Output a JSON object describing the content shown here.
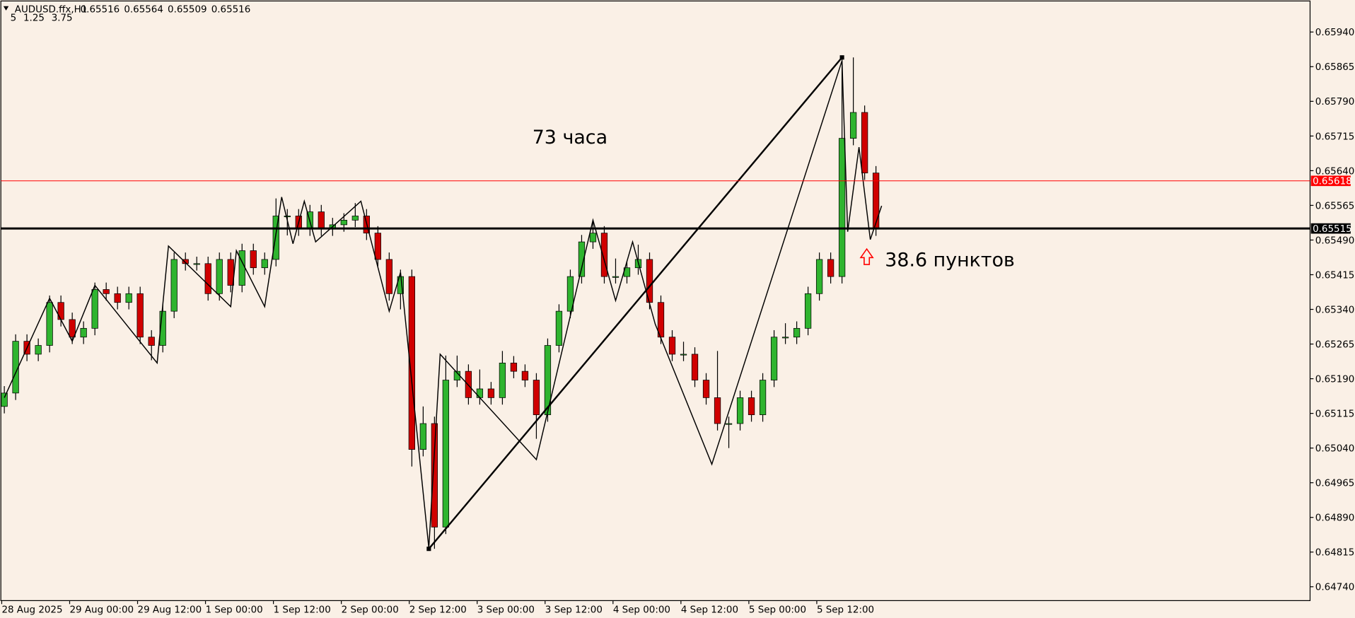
{
  "header": {
    "symbol": "AUDUSD.ffx,H1",
    "last_ohlc": [
      0.65516,
      0.65564,
      0.65509,
      0.65516
    ],
    "indicator_params": [
      5,
      1.25,
      3.75
    ]
  },
  "chart_data": {
    "type": "candlestick",
    "x": [
      0,
      2,
      4,
      6,
      8,
      10,
      12,
      14,
      16,
      18,
      20,
      22,
      24,
      26,
      28,
      30,
      32,
      34,
      36,
      38,
      40,
      42,
      44,
      46,
      48,
      50,
      52,
      54,
      56,
      58,
      60,
      62,
      64,
      66,
      68,
      70,
      72,
      74,
      76,
      78,
      80,
      82,
      84,
      86,
      88,
      90,
      92,
      94,
      96,
      98,
      100,
      102,
      104,
      106,
      108,
      110,
      112,
      114,
      116,
      118,
      120,
      122,
      124,
      126,
      128,
      130,
      132,
      134,
      136,
      138,
      140,
      142,
      144,
      146,
      148,
      150,
      152,
      154
    ],
    "open": [
      0.6513,
      0.65159,
      0.65271,
      0.65243,
      0.65262,
      0.65355,
      0.65318,
      0.6528,
      0.65299,
      0.65383,
      0.65374,
      0.65355,
      0.65374,
      0.6528,
      0.65262,
      0.65336,
      0.65448,
      0.65439,
      0.65439,
      0.65374,
      0.65448,
      0.65392,
      0.65467,
      0.6543,
      0.65448,
      0.65542,
      0.65542,
      0.65514,
      0.65551,
      0.65514,
      0.65523,
      0.65533,
      0.65542,
      0.65505,
      0.65448,
      0.65374,
      0.65411,
      0.65037,
      0.65093,
      0.64869,
      0.65187,
      0.65206,
      0.65149,
      0.65168,
      0.65149,
      0.65224,
      0.65206,
      0.65187,
      0.65112,
      0.65262,
      0.65336,
      0.65411,
      0.65486,
      0.65505,
      0.65411,
      0.65411,
      0.6543,
      0.65448,
      0.65355,
      0.6528,
      0.65243,
      0.65243,
      0.65187,
      0.65149,
      0.65093,
      0.65093,
      0.65149,
      0.65112,
      0.65187,
      0.6528,
      0.6528,
      0.65299,
      0.65374,
      0.65448,
      0.65411,
      0.6571,
      0.65766,
      0.65635
    ],
    "high": [
      0.65174,
      0.65286,
      0.65286,
      0.65277,
      0.6537,
      0.6537,
      0.65333,
      0.65314,
      0.65398,
      0.65398,
      0.65389,
      0.65389,
      0.65389,
      0.65295,
      0.65351,
      0.65463,
      0.65463,
      0.65454,
      0.65454,
      0.65463,
      0.65463,
      0.65482,
      0.65482,
      0.65463,
      0.6558,
      0.65557,
      0.65557,
      0.65566,
      0.65566,
      0.65538,
      0.65548,
      0.6557,
      0.65557,
      0.6552,
      0.65463,
      0.65426,
      0.65426,
      0.6513,
      0.65108,
      0.6524,
      0.6524,
      0.65221,
      0.6521,
      0.65183,
      0.6525,
      0.65239,
      0.65221,
      0.65202,
      0.65277,
      0.65351,
      0.65426,
      0.65501,
      0.6553,
      0.6552,
      0.6545,
      0.65445,
      0.6548,
      0.65463,
      0.6537,
      0.65295,
      0.6527,
      0.65258,
      0.65202,
      0.6525,
      0.65108,
      0.65164,
      0.65164,
      0.65202,
      0.65295,
      0.6531,
      0.65314,
      0.65389,
      0.65463,
      0.65463,
      0.65885,
      0.65885,
      0.65781,
      0.6565
    ],
    "low": [
      0.65115,
      0.65144,
      0.65228,
      0.65228,
      0.65247,
      0.65303,
      0.65265,
      0.65265,
      0.65284,
      0.65359,
      0.6534,
      0.6534,
      0.65265,
      0.6523,
      0.65247,
      0.65321,
      0.65424,
      0.65424,
      0.65359,
      0.65359,
      0.65377,
      0.65377,
      0.65415,
      0.65415,
      0.65433,
      0.655,
      0.65499,
      0.65499,
      0.65499,
      0.65499,
      0.65508,
      0.65518,
      0.6549,
      0.65433,
      0.65359,
      0.6534,
      0.65,
      0.65022,
      0.64822,
      0.64854,
      0.65172,
      0.65134,
      0.65134,
      0.65134,
      0.65134,
      0.65191,
      0.65172,
      0.6506,
      0.65097,
      0.65247,
      0.65321,
      0.65396,
      0.65471,
      0.65396,
      0.65396,
      0.65396,
      0.65415,
      0.6534,
      0.65265,
      0.65228,
      0.65228,
      0.65172,
      0.65134,
      0.65078,
      0.6504,
      0.65078,
      0.65097,
      0.65097,
      0.65172,
      0.65265,
      0.65265,
      0.65284,
      0.65359,
      0.65396,
      0.65396,
      0.65695,
      0.6562,
      0.65499
    ],
    "close": [
      0.65159,
      0.65271,
      0.65243,
      0.65262,
      0.65355,
      0.65318,
      0.6528,
      0.65299,
      0.65383,
      0.65374,
      0.65355,
      0.65374,
      0.6528,
      0.65262,
      0.65336,
      0.65448,
      0.65439,
      0.65439,
      0.65374,
      0.65448,
      0.65392,
      0.65467,
      0.6543,
      0.65448,
      0.65542,
      0.65542,
      0.65514,
      0.65551,
      0.65514,
      0.65523,
      0.65533,
      0.65542,
      0.65505,
      0.65448,
      0.65374,
      0.65411,
      0.65037,
      0.65093,
      0.64869,
      0.65187,
      0.65206,
      0.65149,
      0.65168,
      0.65149,
      0.65224,
      0.65206,
      0.65187,
      0.65112,
      0.65262,
      0.65336,
      0.65411,
      0.65486,
      0.65505,
      0.65411,
      0.65411,
      0.6543,
      0.65448,
      0.65355,
      0.6528,
      0.65243,
      0.65243,
      0.65187,
      0.65149,
      0.65093,
      0.65093,
      0.65149,
      0.65112,
      0.65187,
      0.6528,
      0.6528,
      0.65299,
      0.65374,
      0.65448,
      0.65411,
      0.6571,
      0.65766,
      0.65635,
      0.65514
    ],
    "up_color": "#2fb42f",
    "down_color": "#d00000",
    "wick_color": "#000000",
    "xlim": [
      0,
      231
    ],
    "ylim": [
      0.6471,
      0.66009
    ],
    "xticks": [
      {
        "value": 0,
        "label": "28 Aug 2025"
      },
      {
        "value": 12,
        "label": "29 Aug 00:00"
      },
      {
        "value": 24,
        "label": "29 Aug 12:00"
      },
      {
        "value": 36,
        "label": "1 Sep 00:00"
      },
      {
        "value": 48,
        "label": "1 Sep 12:00"
      },
      {
        "value": 60,
        "label": "2 Sep 00:00"
      },
      {
        "value": 72,
        "label": "2 Sep 12:00"
      },
      {
        "value": 84,
        "label": "3 Sep 00:00"
      },
      {
        "value": 96,
        "label": "3 Sep 12:00"
      },
      {
        "value": 108,
        "label": "4 Sep 00:00"
      },
      {
        "value": 120,
        "label": "4 Sep 12:00"
      },
      {
        "value": 132,
        "label": "5 Sep 00:00"
      },
      {
        "value": 144,
        "label": "5 Sep 12:00"
      }
    ],
    "yticks": [
      {
        "value": 0.6594,
        "label": "0.65940"
      },
      0.65865,
      {
        "value": 0.6579,
        "label": "0.65790"
      },
      0.65715,
      {
        "value": 0.6564,
        "label": "0.65640"
      },
      0.65565,
      {
        "value": 0.6549,
        "label": "0.65490"
      },
      0.65415,
      {
        "value": 0.6534,
        "label": "0.65340"
      },
      0.65265,
      {
        "value": 0.6519,
        "label": "0.65190"
      },
      0.65115,
      {
        "value": 0.6504,
        "label": "0.65040"
      },
      0.64965,
      {
        "value": 0.6489,
        "label": "0.64890"
      },
      0.64815,
      {
        "value": 0.6474,
        "label": "0.64740"
      }
    ],
    "hlines": [
      {
        "value": 0.65618,
        "color": "#ff0000"
      },
      {
        "value": 0.65515,
        "color": "#000000"
      }
    ],
    "trendline": {
      "x": [
        75,
        148
      ],
      "y": [
        0.64822,
        0.65885
      ]
    },
    "zigzag": {
      "x": [
        0,
        8,
        12,
        16,
        27,
        29,
        40,
        41,
        46,
        49,
        51,
        53,
        55,
        63,
        68,
        70,
        75,
        77,
        94,
        104,
        108,
        111,
        115,
        125,
        148,
        149,
        151,
        153,
        155
      ],
      "y": [
        0.65149,
        0.65364,
        0.65271,
        0.65392,
        0.65224,
        0.65477,
        0.65346,
        0.65467,
        0.65346,
        0.65583,
        0.65482,
        0.65574,
        0.65486,
        0.65574,
        0.65336,
        0.6542,
        0.64824,
        0.65243,
        0.65015,
        0.65533,
        0.65359,
        0.65486,
        0.65308,
        0.65005,
        0.65878,
        0.65508,
        0.65691,
        0.65491,
        0.65564
      ]
    },
    "annotations": [
      "73 часа",
      "38.6 пунктов"
    ]
  }
}
